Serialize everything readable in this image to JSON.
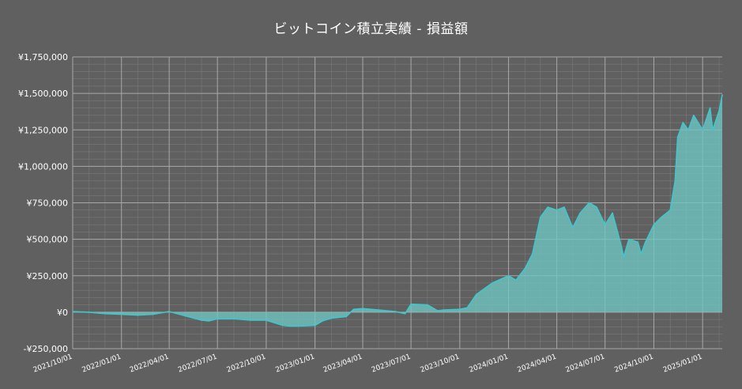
{
  "chart_data": {
    "type": "area",
    "title": "ビットコイン積立実績 - 損益額",
    "xlabel": "",
    "ylabel": "",
    "xlim": [
      "2021-10-01",
      "2025-02-07"
    ],
    "ylim": [
      -250000,
      1750000
    ],
    "yticks": [
      -250000,
      0,
      250000,
      500000,
      750000,
      1000000,
      1250000,
      1500000,
      1750000
    ],
    "ytick_labels": [
      "-¥250,000",
      "¥0",
      "¥250,000",
      "¥500,000",
      "¥750,000",
      "¥1,000,000",
      "¥1,250,000",
      "¥1,500,000",
      "¥1,750,000"
    ],
    "xtick_labels": [
      "2021/10/01",
      "2022/01/01",
      "2022/04/01",
      "2022/07/01",
      "2022/10/01",
      "2023/01/01",
      "2023/04/01",
      "2023/07/01",
      "2023/10/01",
      "2024/01/01",
      "2024/04/01",
      "2024/07/01",
      "2024/10/01",
      "2025/01/01"
    ],
    "grid": true,
    "colors": {
      "background": "#606060",
      "line": "#3ec7cc",
      "fill": "#6fc6c4",
      "grid": "#8a8a8a",
      "text": "#ffffff"
    },
    "series": [
      {
        "x": [
          "2021-10-01",
          "2021-11-01",
          "2021-12-01",
          "2022-01-01",
          "2022-02-01",
          "2022-03-01",
          "2022-04-01",
          "2022-05-01",
          "2022-06-01",
          "2022-06-15",
          "2022-07-01",
          "2022-08-01",
          "2022-09-01",
          "2022-10-01",
          "2022-11-01",
          "2022-11-15",
          "2022-12-01",
          "2023-01-01",
          "2023-01-15",
          "2023-02-01",
          "2023-03-01",
          "2023-03-15",
          "2023-04-01",
          "2023-05-01",
          "2023-06-01",
          "2023-06-20",
          "2023-07-01",
          "2023-08-01",
          "2023-08-20",
          "2023-09-01",
          "2023-10-01",
          "2023-10-15",
          "2023-11-01",
          "2023-12-01",
          "2024-01-01",
          "2024-01-15",
          "2024-02-01",
          "2024-02-15",
          "2024-03-01",
          "2024-03-15",
          "2024-04-01",
          "2024-04-15",
          "2024-05-01",
          "2024-05-15",
          "2024-06-01",
          "2024-06-15",
          "2024-07-01",
          "2024-07-15",
          "2024-08-01",
          "2024-08-05",
          "2024-08-15",
          "2024-09-01",
          "2024-09-07",
          "2024-09-15",
          "2024-10-01",
          "2024-10-15",
          "2024-11-01",
          "2024-11-10",
          "2024-11-15",
          "2024-11-25",
          "2024-12-05",
          "2024-12-15",
          "2025-01-01",
          "2025-01-15",
          "2025-01-20",
          "2025-02-01",
          "2025-02-07"
        ],
        "y": [
          5000,
          0,
          -10000,
          -15000,
          -20000,
          -15000,
          5000,
          -25000,
          -55000,
          -60000,
          -45000,
          -45000,
          -55000,
          -55000,
          -90000,
          -95000,
          -95000,
          -90000,
          -60000,
          -40000,
          -30000,
          20000,
          25000,
          15000,
          5000,
          -10000,
          55000,
          50000,
          10000,
          15000,
          20000,
          30000,
          120000,
          200000,
          250000,
          220000,
          300000,
          400000,
          650000,
          720000,
          700000,
          720000,
          580000,
          680000,
          750000,
          720000,
          600000,
          680000,
          450000,
          380000,
          500000,
          480000,
          400000,
          480000,
          600000,
          650000,
          700000,
          900000,
          1200000,
          1300000,
          1250000,
          1350000,
          1250000,
          1400000,
          1250000,
          1380000,
          1490000
        ]
      }
    ]
  }
}
